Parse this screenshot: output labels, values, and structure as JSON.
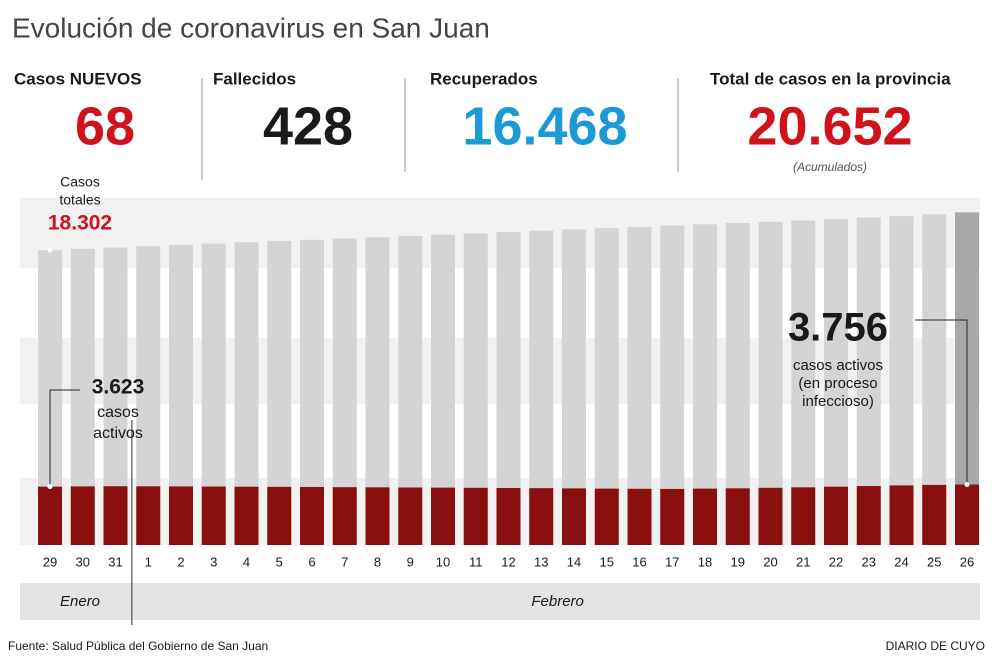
{
  "header": {
    "title": "Evolución de coronavirus en San Juan",
    "stats": [
      {
        "label": "Casos NUEVOS",
        "value": "68",
        "color": "#d0121b"
      },
      {
        "label": "Fallecidos",
        "value": "428",
        "color": "#1a1a1a"
      },
      {
        "label": "Recuperados",
        "value": "16.468",
        "color": "#1b9ad6"
      },
      {
        "label": "Total de casos en la provincia",
        "value": "20.652",
        "color": "#d0121b",
        "note": "(Acumulados)"
      }
    ]
  },
  "chart_data": {
    "type": "bar",
    "categories": [
      "29",
      "30",
      "31",
      "1",
      "2",
      "3",
      "4",
      "5",
      "6",
      "7",
      "8",
      "9",
      "10",
      "11",
      "12",
      "13",
      "14",
      "15",
      "16",
      "17",
      "18",
      "19",
      "20",
      "21",
      "22",
      "23",
      "24",
      "25",
      "26"
    ],
    "groups": [
      {
        "label": "Enero",
        "start": 0
      },
      {
        "label": "Febrero",
        "start": 3
      }
    ],
    "ylim": [
      0,
      22600
    ],
    "series": [
      {
        "color": "#d4d4d4",
        "last_color": "#a8a8a8",
        "values": [
          18302,
          18390,
          18470,
          18550,
          18630,
          18710,
          18790,
          18870,
          18950,
          19030,
          19110,
          19190,
          19270,
          19350,
          19430,
          19510,
          19590,
          19670,
          19750,
          19830,
          19910,
          19990,
          20070,
          20150,
          20240,
          20330,
          20420,
          20530,
          20652
        ],
        "value_labels": [
          "18.302",
          null,
          null,
          null,
          null,
          null,
          null,
          null,
          null,
          null,
          null,
          null,
          null,
          null,
          null,
          null,
          null,
          null,
          null,
          null,
          null,
          null,
          null,
          null,
          null,
          null,
          null,
          null,
          null
        ],
        "caption": [
          "Casos",
          "totales"
        ]
      },
      {
        "color": "#8a1010",
        "values": [
          3623,
          3640,
          3650,
          3645,
          3640,
          3630,
          3620,
          3610,
          3600,
          3590,
          3580,
          3570,
          3560,
          3550,
          3540,
          3530,
          3515,
          3500,
          3490,
          3480,
          3500,
          3520,
          3550,
          3580,
          3620,
          3660,
          3700,
          3730,
          3756
        ],
        "value_labels": [
          "3.623",
          null,
          null,
          null,
          null,
          null,
          null,
          null,
          null,
          null,
          null,
          null,
          null,
          null,
          null,
          null,
          null,
          null,
          null,
          null,
          null,
          null,
          null,
          null,
          null,
          null,
          null,
          null,
          "3.756"
        ],
        "captions": [
          [
            "casos",
            "activos"
          ],
          [
            "casos activos",
            "(en proceso",
            "infeccioso)"
          ]
        ]
      }
    ]
  },
  "footer": {
    "source": "Fuente: Salud Pública del Gobierno de San Juan",
    "credit": "DIARIO DE CUYO"
  }
}
